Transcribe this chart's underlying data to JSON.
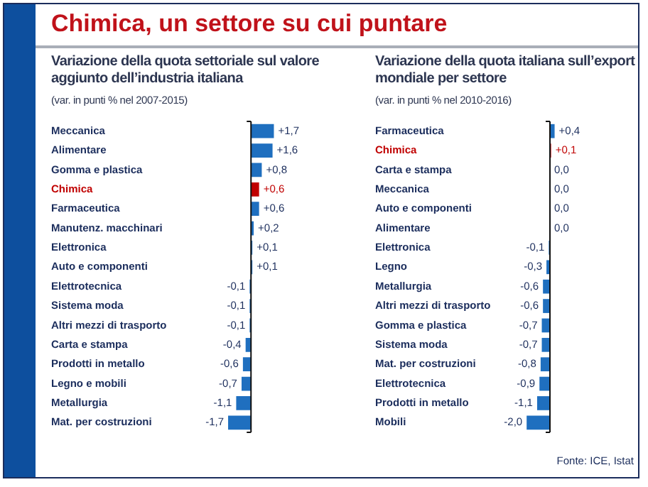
{
  "chart_data": [
    {
      "type": "bar",
      "orientation": "horizontal",
      "title": "Variazione della quota settoriale sul valore aggiunto dell’industria italiana",
      "subtitle": "(var. in punti % nel 2007-2015)",
      "annotations": [
        "Chimica, un settore su cui puntare"
      ],
      "categories": [
        "Meccanica",
        "Alimentare",
        "Gomma e plastica",
        "Chimica",
        "Farmaceutica",
        "Manutenz. macchinari",
        "Elettronica",
        "Auto e componenti",
        "Elettrotecnica",
        "Sistema moda",
        "Altri mezzi di trasporto",
        "Carta e stampa",
        "Prodotti in metallo",
        "Legno e mobili",
        "Metallurgia",
        "Mat. per costruzioni"
      ],
      "values": [
        1.7,
        1.6,
        0.8,
        0.6,
        0.6,
        0.2,
        0.1,
        0.1,
        -0.1,
        -0.1,
        -0.1,
        -0.4,
        -0.6,
        -0.7,
        -1.1,
        -1.7
      ],
      "value_labels": [
        "+1,7",
        "+1,6",
        "+0,8",
        "+0,6",
        "+0,6",
        "+0,2",
        "+0,1",
        "+0,1",
        "-0,1",
        "-0,1",
        "-0,1",
        "-0,4",
        "-0,6",
        "-0,7",
        "-1,1",
        "-1,7"
      ],
      "color": "#1f6fbf",
      "colors": [
        "#1f6fbf",
        "#1f6fbf",
        "#1f6fbf",
        "#c00000",
        "#1f6fbf",
        "#1f6fbf",
        "#1f6fbf",
        "#1f6fbf",
        "#1f6fbf",
        "#1f6fbf",
        "#1f6fbf",
        "#1f6fbf",
        "#1f6fbf",
        "#1f6fbf",
        "#1f6fbf",
        "#1f6fbf"
      ],
      "tick_labels": "y",
      "legend": false
    },
    {
      "type": "bar",
      "orientation": "horizontal",
      "title": "Variazione della quota italiana sull’export mondiale per settore",
      "subtitle": "(var. in punti % nel 2010-2016)",
      "annotations": [
        "Fonte: ICE, Istat"
      ],
      "categories": [
        "Farmaceutica",
        "Chimica",
        "Carta e stampa",
        "Meccanica",
        "Auto e componenti",
        "Alimentare",
        "Elettronica",
        "Legno",
        "Metallurgia",
        "Altri mezzi di trasporto",
        "Gomma e plastica",
        "Sistema moda",
        "Mat. per costruzioni",
        "Elettrotecnica",
        "Prodotti in metallo",
        "Mobili"
      ],
      "values": [
        0.4,
        0.1,
        0.0,
        0.0,
        0.0,
        0.0,
        -0.1,
        -0.3,
        -0.6,
        -0.6,
        -0.7,
        -0.7,
        -0.8,
        -0.9,
        -1.1,
        -2.0
      ],
      "value_labels": [
        "+0,4",
        "+0,1",
        "0,0",
        "0,0",
        "0,0",
        "0,0",
        "-0,1",
        "-0,3",
        "-0,6",
        "-0,6",
        "-0,7",
        "-0,7",
        "-0,8",
        "-0,9",
        "-1,1",
        "-2,0"
      ],
      "color": "#1f6fbf",
      "colors": [
        "#1f6fbf",
        "#c00000",
        "#1f6fbf",
        "#1f6fbf",
        "#1f6fbf",
        "#1f6fbf",
        "#1f6fbf",
        "#1f6fbf",
        "#1f6fbf",
        "#1f6fbf",
        "#1f6fbf",
        "#1f6fbf",
        "#1f6fbf",
        "#1f6fbf",
        "#1f6fbf",
        "#1f6fbf"
      ],
      "tick_labels": "y",
      "legend": false
    }
  ]
}
